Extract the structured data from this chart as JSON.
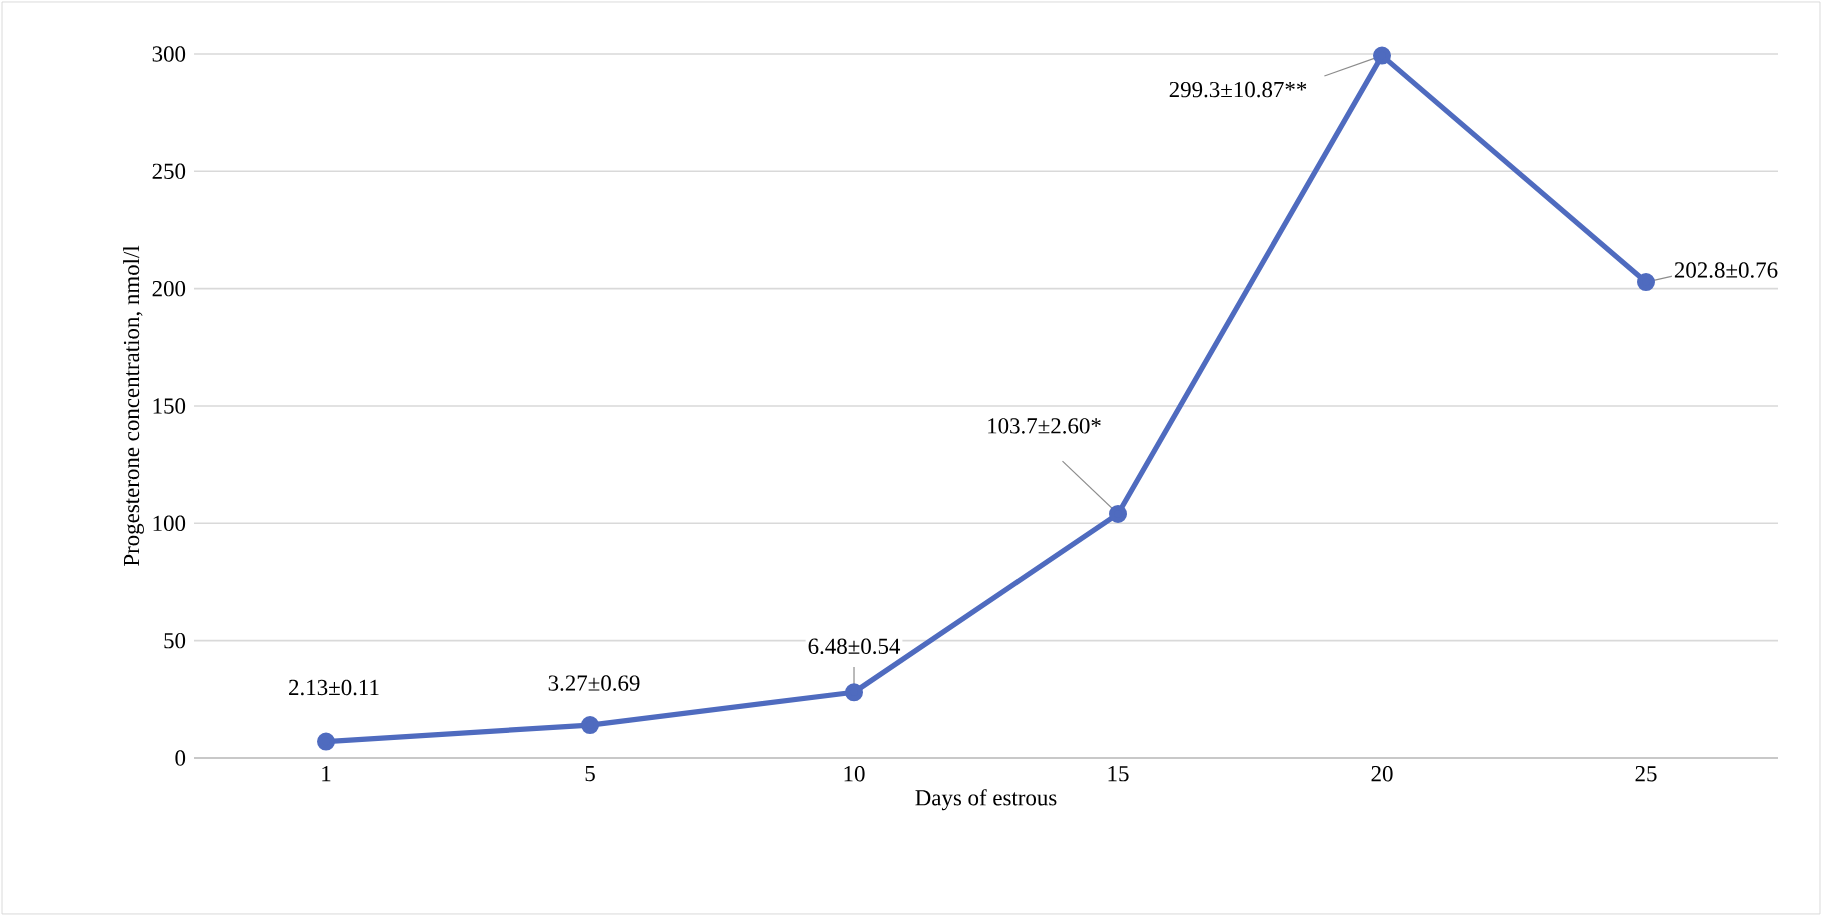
{
  "chart_data": {
    "type": "line",
    "categories": [
      "1",
      "5",
      "10",
      "15",
      "20",
      "25"
    ],
    "series": [
      {
        "color": "#4f6bbf",
        "values": [
          7,
          14,
          28,
          104,
          299.3,
          202.8
        ]
      }
    ],
    "xlabel": "Days of estrous",
    "ylabel": "Progesterone concentration, nmol/l",
    "ylim": [
      0,
      300
    ],
    "yticks": [
      0,
      50,
      100,
      150,
      200,
      250,
      300
    ],
    "grid": "y",
    "marker": "circle",
    "line_style": "solid",
    "annotations": [
      {
        "text": "2.13±0.11",
        "x": "1",
        "y": 7
      },
      {
        "text": "3.27±0.69",
        "x": "5",
        "y": 14
      },
      {
        "text": "6.48±0.54",
        "x": "10",
        "y": 28
      },
      {
        "text": "103.7±2.60*",
        "x": "15",
        "y": 104
      },
      {
        "text": "299.3±10.87**",
        "x": "20",
        "y": 299.3
      },
      {
        "text": "202.8±0.76",
        "x": "25",
        "y": 202.8
      }
    ]
  }
}
